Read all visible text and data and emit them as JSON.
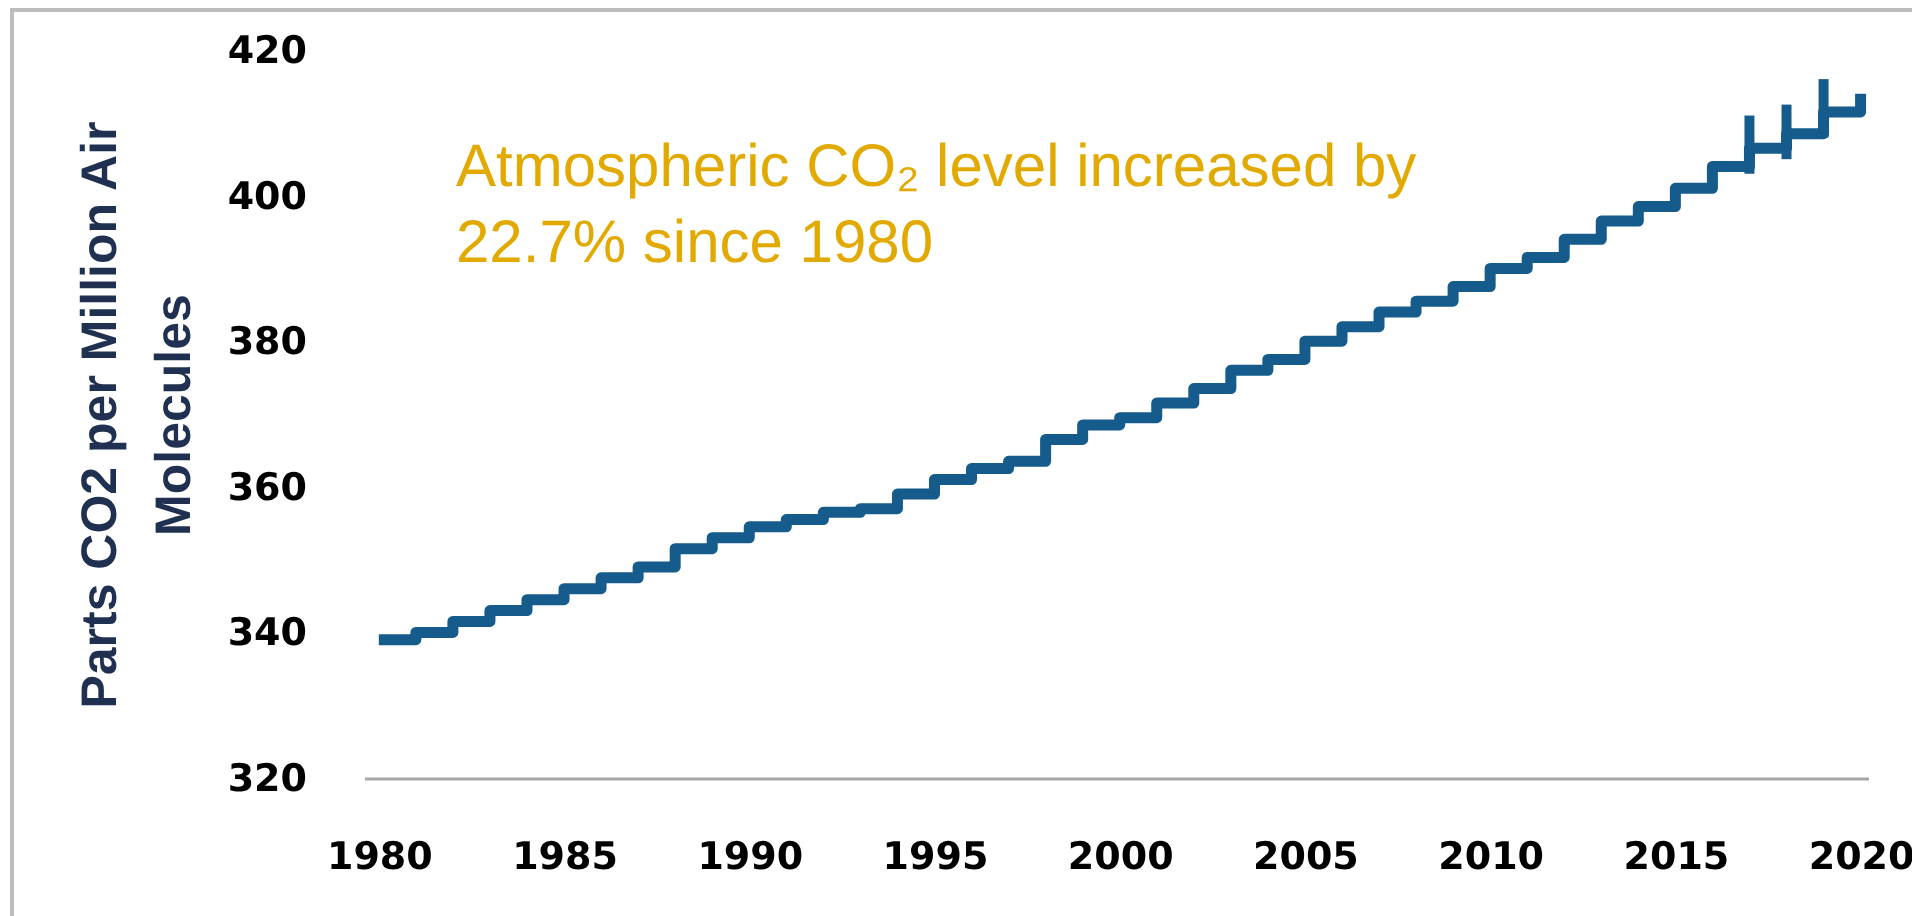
{
  "chart_data": {
    "type": "step",
    "x": [
      1980,
      1981,
      1982,
      1983,
      1984,
      1985,
      1986,
      1987,
      1988,
      1989,
      1990,
      1991,
      1992,
      1993,
      1994,
      1995,
      1996,
      1997,
      1998,
      1999,
      2000,
      2001,
      2002,
      2003,
      2004,
      2005,
      2006,
      2007,
      2008,
      2009,
      2010,
      2011,
      2012,
      2013,
      2014,
      2015,
      2016,
      2017,
      2018,
      2019,
      2020
    ],
    "values": [
      339,
      340,
      341.5,
      343,
      344.5,
      346,
      347.5,
      349,
      351.5,
      353,
      354.5,
      355.5,
      356.5,
      357,
      359,
      361,
      362.5,
      363.5,
      366.5,
      368.5,
      369.5,
      371.5,
      373.5,
      376,
      377.5,
      380,
      382,
      384,
      385.5,
      387.5,
      390,
      391.5,
      394,
      396.5,
      398.5,
      401,
      404,
      406.5,
      408.5,
      411.5,
      414
    ],
    "errors": [
      null,
      null,
      null,
      null,
      null,
      null,
      null,
      null,
      null,
      null,
      null,
      null,
      null,
      null,
      null,
      null,
      null,
      null,
      null,
      null,
      null,
      null,
      null,
      null,
      null,
      null,
      null,
      null,
      null,
      null,
      null,
      null,
      null,
      null,
      null,
      null,
      null,
      [
        403,
        411
      ],
      [
        405,
        412.5
      ],
      [
        408,
        416
      ],
      null
    ],
    "color": "#155b8c",
    "line_style": "solid",
    "xlim": [
      1979.6,
      2020.2
    ],
    "xticks": [
      1980,
      1985,
      1990,
      1995,
      2000,
      2005,
      2010,
      2015,
      2020
    ],
    "ylim": [
      320,
      420
    ],
    "yticks": [
      320,
      340,
      360,
      380,
      400,
      420
    ],
    "ylabel": "Parts CO2 per Million Air Molecules",
    "annotations": [
      "Atmospheric CO₂ level increased by 22.7% since 1980"
    ]
  }
}
